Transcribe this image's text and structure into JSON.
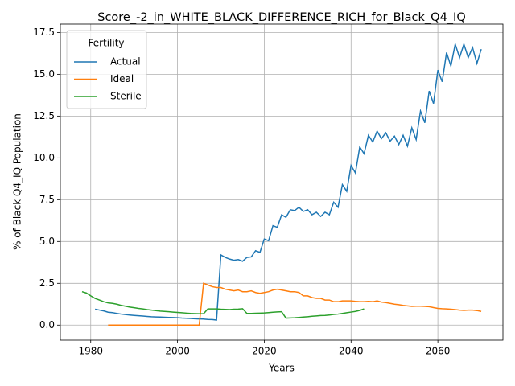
{
  "chart_data": {
    "type": "line",
    "title": "Score_-2_in_WHITE_BLACK_DIFFERENCE_RICH_for_Black_Q4_IQ",
    "xlabel": "Years",
    "ylabel": "% of Black Q4_IQ Population",
    "legend_title": "Fertility",
    "legend": "upper left",
    "grid": true,
    "xlim": [
      1973,
      2075
    ],
    "ylim": [
      -0.9,
      18.0
    ],
    "xticks": [
      1980,
      2000,
      2020,
      2040,
      2060
    ],
    "yticks": [
      {
        "value": 0,
        "label": "0.0"
      },
      2.5,
      {
        "value": 5,
        "label": "5.0"
      },
      7.5,
      {
        "value": 10,
        "label": "10.0"
      },
      12.5,
      {
        "value": 15,
        "label": "15.0"
      },
      17.5
    ],
    "x": [
      1978,
      1979,
      1980,
      1981,
      1982,
      1983,
      1984,
      1985,
      1986,
      1987,
      1988,
      1989,
      1990,
      1991,
      1992,
      1993,
      1994,
      1995,
      1996,
      1997,
      1998,
      1999,
      2000,
      2001,
      2002,
      2003,
      2004,
      2005,
      2006,
      2007,
      2008,
      2009,
      2010,
      2011,
      2012,
      2013,
      2014,
      2015,
      2016,
      2017,
      2018,
      2019,
      2020,
      2021,
      2022,
      2023,
      2024,
      2025,
      2026,
      2027,
      2028,
      2029,
      2030,
      2031,
      2032,
      2033,
      2034,
      2035,
      2036,
      2037,
      2038,
      2039,
      2040,
      2041,
      2042,
      2043,
      2044,
      2045,
      2046,
      2047,
      2048,
      2049,
      2050,
      2051,
      2052,
      2053,
      2054,
      2055,
      2056,
      2057,
      2058,
      2059,
      2060,
      2061,
      2062,
      2063,
      2064,
      2065,
      2066,
      2067,
      2068,
      2069,
      2070
    ],
    "series": [
      {
        "name": "Actual",
        "color": "#1f77b4",
        "values": [
          null,
          null,
          null,
          0.95,
          0.9,
          0.85,
          0.77,
          0.75,
          0.7,
          0.66,
          0.63,
          0.6,
          0.58,
          0.56,
          0.54,
          0.52,
          0.5,
          0.49,
          0.48,
          0.47,
          0.46,
          0.45,
          0.44,
          0.42,
          0.41,
          0.4,
          0.38,
          0.37,
          0.36,
          0.34,
          0.33,
          0.3,
          4.2,
          4.05,
          3.95,
          3.88,
          3.92,
          3.82,
          4.05,
          4.08,
          4.45,
          4.35,
          5.15,
          5.05,
          5.95,
          5.85,
          6.6,
          6.45,
          6.9,
          6.85,
          7.05,
          6.8,
          6.9,
          6.6,
          6.75,
          6.5,
          6.75,
          6.6,
          7.35,
          7.05,
          8.4,
          8.0,
          9.55,
          9.1,
          10.65,
          10.25,
          11.35,
          10.95,
          11.6,
          11.15,
          11.5,
          11.0,
          11.3,
          10.8,
          11.35,
          10.7,
          11.8,
          11.1,
          12.8,
          12.1,
          14.0,
          13.25,
          15.25,
          14.55,
          16.3,
          15.5,
          16.8,
          16.0,
          16.8,
          16.0,
          16.6,
          15.65,
          16.5
        ]
      },
      {
        "name": "Ideal",
        "color": "#ff7f0e",
        "values": [
          null,
          null,
          null,
          null,
          null,
          null,
          0,
          0,
          0,
          0,
          0,
          0,
          0,
          0,
          0,
          0,
          0,
          0,
          0,
          0,
          0,
          0,
          0,
          0,
          0,
          0,
          0,
          0,
          2.5,
          2.4,
          2.3,
          2.25,
          2.25,
          2.15,
          2.1,
          2.05,
          2.1,
          2.0,
          2.0,
          2.05,
          1.95,
          1.9,
          1.95,
          2.0,
          2.1,
          2.15,
          2.1,
          2.05,
          2.0,
          2.0,
          1.95,
          1.75,
          1.75,
          1.65,
          1.6,
          1.6,
          1.5,
          1.5,
          1.4,
          1.4,
          1.45,
          1.45,
          1.45,
          1.42,
          1.4,
          1.4,
          1.42,
          1.4,
          1.45,
          1.38,
          1.35,
          1.3,
          1.25,
          1.22,
          1.18,
          1.15,
          1.12,
          1.13,
          1.13,
          1.12,
          1.1,
          1.05,
          1.0,
          0.98,
          0.97,
          0.95,
          0.93,
          0.9,
          0.88,
          0.9,
          0.9,
          0.87,
          0.82
        ]
      },
      {
        "name": "Sterile",
        "color": "#2ca02c",
        "values": [
          2.0,
          1.92,
          1.75,
          1.6,
          1.5,
          1.4,
          1.33,
          1.3,
          1.25,
          1.18,
          1.13,
          1.08,
          1.04,
          1.0,
          0.97,
          0.93,
          0.9,
          0.87,
          0.84,
          0.82,
          0.8,
          0.78,
          0.76,
          0.74,
          0.72,
          0.7,
          0.69,
          0.68,
          0.68,
          0.97,
          0.97,
          0.97,
          0.95,
          0.94,
          0.93,
          0.95,
          0.96,
          0.98,
          0.7,
          0.7,
          0.71,
          0.72,
          0.73,
          0.75,
          0.77,
          0.79,
          0.8,
          0.42,
          0.43,
          0.44,
          0.46,
          0.48,
          0.5,
          0.53,
          0.55,
          0.57,
          0.58,
          0.6,
          0.64,
          0.66,
          0.7,
          0.74,
          0.78,
          0.82,
          0.88,
          0.97,
          null,
          null,
          null,
          null,
          null,
          null,
          null,
          null,
          null,
          null,
          null,
          null,
          null,
          null,
          null,
          null,
          null,
          null,
          null,
          null,
          null,
          null,
          null,
          null,
          null,
          null,
          null
        ]
      }
    ]
  }
}
